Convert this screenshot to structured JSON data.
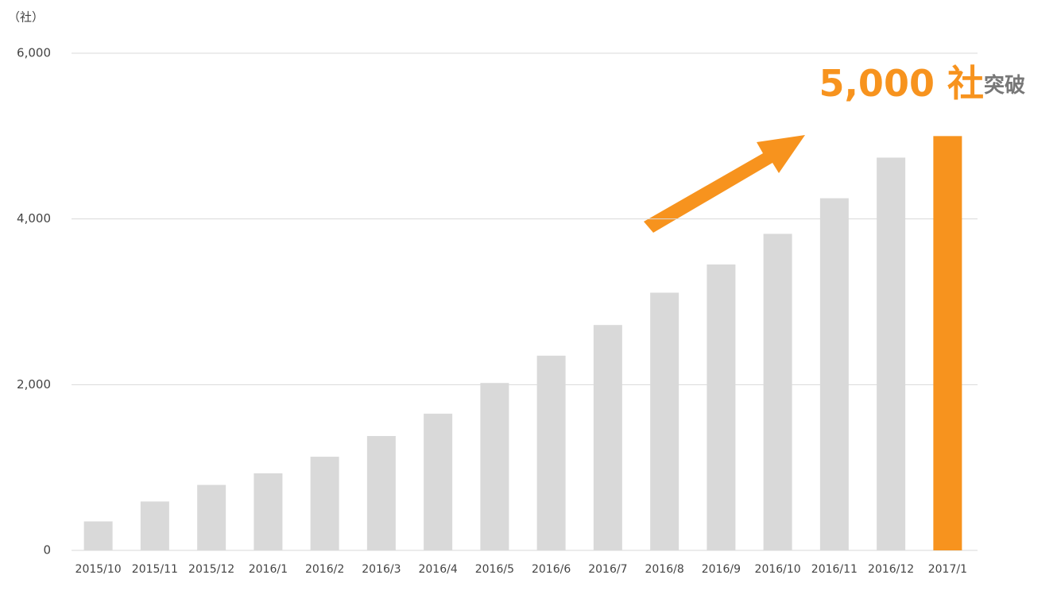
{
  "chart_data": {
    "type": "bar",
    "y_label": "（社）",
    "categories": [
      "2015/10",
      "2015/11",
      "2015/12",
      "2016/1",
      "2016/2",
      "2016/3",
      "2016/4",
      "2016/5",
      "2016/6",
      "2016/7",
      "2016/8",
      "2016/9",
      "2016/10",
      "2016/11",
      "2016/12",
      "2017/1"
    ],
    "values": [
      350,
      590,
      790,
      930,
      1130,
      1380,
      1650,
      2020,
      2350,
      2720,
      3110,
      3450,
      3820,
      4250,
      4740,
      5000
    ],
    "colors": [
      "#d9d9d9",
      "#d9d9d9",
      "#d9d9d9",
      "#d9d9d9",
      "#d9d9d9",
      "#d9d9d9",
      "#d9d9d9",
      "#d9d9d9",
      "#d9d9d9",
      "#d9d9d9",
      "#d9d9d9",
      "#d9d9d9",
      "#d9d9d9",
      "#d9d9d9",
      "#d9d9d9",
      "#f7931e"
    ],
    "ylim": [
      0,
      6000
    ],
    "yticks": [
      0,
      {
        "value": 2000,
        "label": "2,000"
      },
      {
        "value": 4000,
        "label": "4,000"
      },
      {
        "value": 6000,
        "label": "6,000"
      }
    ],
    "grid": true,
    "annotation": {
      "text": "5,000 社",
      "subtext": "突破"
    }
  }
}
